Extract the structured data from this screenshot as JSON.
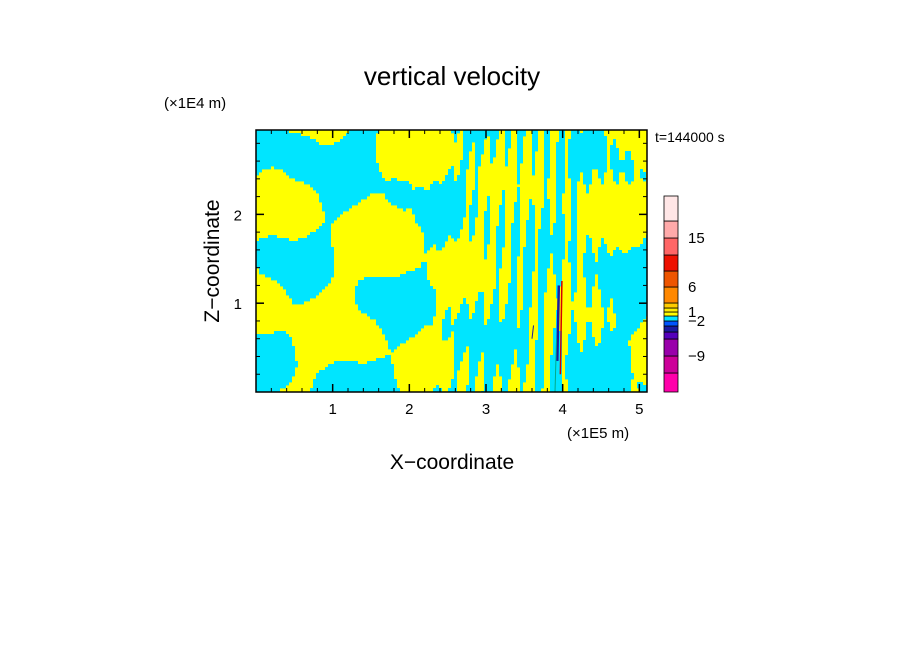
{
  "chart_data": {
    "type": "heatmap",
    "title": "vertical velocity",
    "xlabel": "X−coordinate",
    "ylabel": "Z−coordinate",
    "x_unit": "(×1E5 m)",
    "y_unit": "(×1E4 m)",
    "annotation": "t=144000 s",
    "xlim": [
      0,
      5.1
    ],
    "ylim": [
      0,
      2.95
    ],
    "x_ticks": [
      {
        "value": 1,
        "label": "1"
      },
      {
        "value": 2,
        "label": "2"
      },
      {
        "value": 3,
        "label": "3"
      },
      {
        "value": 4,
        "label": "4"
      },
      {
        "value": 5,
        "label": "5"
      }
    ],
    "y_ticks": [
      {
        "value": 1,
        "label": "1"
      },
      {
        "value": 2,
        "label": "2"
      }
    ],
    "field_colors": {
      "positive": "#ffff00",
      "negative": "#00e5ff",
      "strong_positive": "#d40000",
      "strong_negative": "#1a1aa0"
    },
    "colorbar": {
      "levels": [
        {
          "color": "#ff00aa"
        },
        {
          "color": "#cc0099"
        },
        {
          "color": "#9900aa"
        },
        {
          "color": "#5500bb"
        },
        {
          "color": "#1a1aa0"
        },
        {
          "color": "#0055ff"
        },
        {
          "color": "#00e5ff"
        },
        {
          "color": "#ffff00"
        },
        {
          "color": "#ffee00"
        },
        {
          "color": "#ffcc00"
        },
        {
          "color": "#ff8800"
        },
        {
          "color": "#ee5500"
        },
        {
          "color": "#ee1100"
        },
        {
          "color": "#ff6666"
        },
        {
          "color": "#ffaaaa"
        },
        {
          "color": "#ffe6e6"
        }
      ],
      "labels": [
        {
          "value": -9,
          "label": "−9"
        },
        {
          "value": -2,
          "label": "−2"
        },
        {
          "value": 1,
          "label": "1"
        },
        {
          "value": 6,
          "label": "6"
        },
        {
          "value": 15,
          "label": "15"
        }
      ]
    }
  }
}
